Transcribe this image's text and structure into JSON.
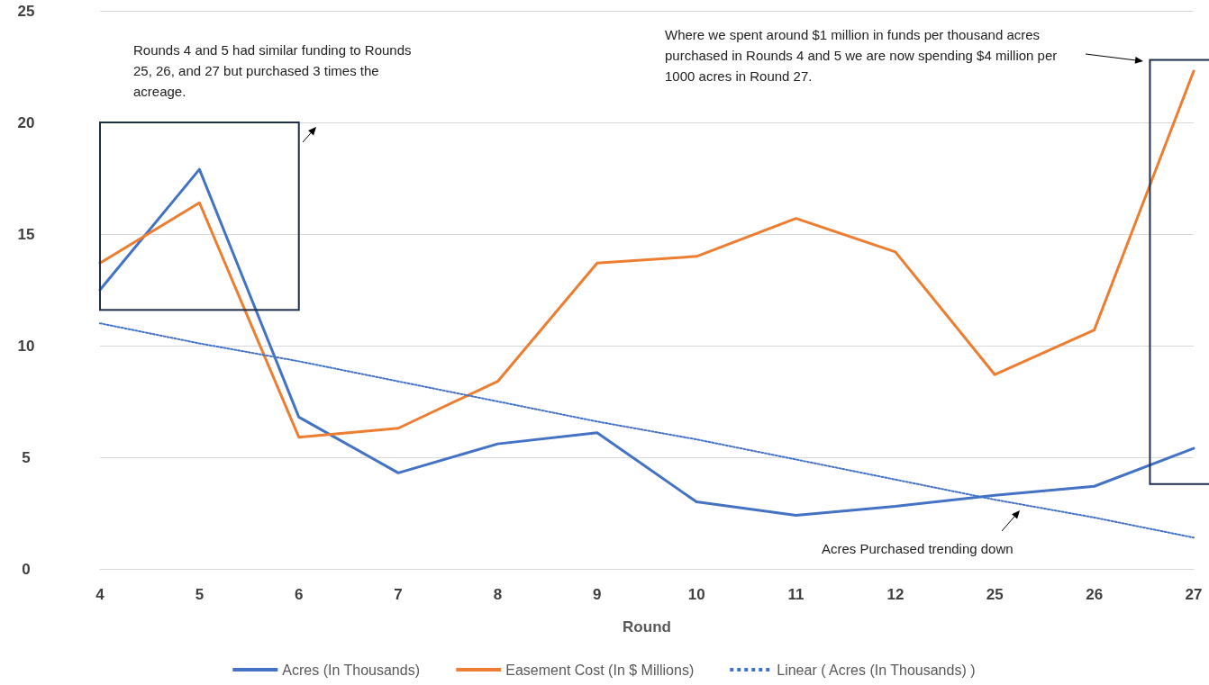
{
  "chart_data": {
    "type": "line",
    "xlabel": "Round",
    "categories": [
      "4",
      "5",
      "6",
      "7",
      "8",
      "9",
      "10",
      "11",
      "12",
      "25",
      "26",
      "27"
    ],
    "series": [
      {
        "name": "Acres (In Thousands)",
        "color": "#4472c4",
        "values": [
          12.5,
          17.9,
          6.8,
          4.3,
          5.6,
          6.1,
          3.0,
          2.4,
          2.8,
          3.3,
          3.7,
          5.4
        ]
      },
      {
        "name": "Easement Cost (In $ Millions)",
        "color": "#ed7d31",
        "values": [
          13.7,
          16.4,
          5.9,
          6.3,
          8.4,
          13.7,
          14.0,
          15.7,
          14.2,
          8.7,
          10.7,
          22.3
        ]
      },
      {
        "name": "Linear ( Acres (In Thousands) )",
        "color": "#4472c4",
        "line_style": "dotted",
        "values": [
          11.0,
          10.1,
          9.3,
          8.4,
          7.5,
          6.6,
          5.8,
          4.9,
          4.0,
          3.1,
          2.3,
          1.4
        ]
      }
    ],
    "ylim": [
      0,
      25
    ],
    "yticks": [
      0,
      5,
      10,
      15,
      20,
      25
    ],
    "grid": "y",
    "legend": "bottom",
    "marker": "none",
    "annotations": [
      "Rounds 4 and 5 had similar funding to Rounds 25, 26, and 27 but purchased 3 times the acreage.",
      "Where we spent around $1 million in funds per thousand acres purchased in Rounds 4 and 5 we are now spending $4 million per 1000 acres in Round 27.",
      "Acres Purchased trending down"
    ]
  }
}
